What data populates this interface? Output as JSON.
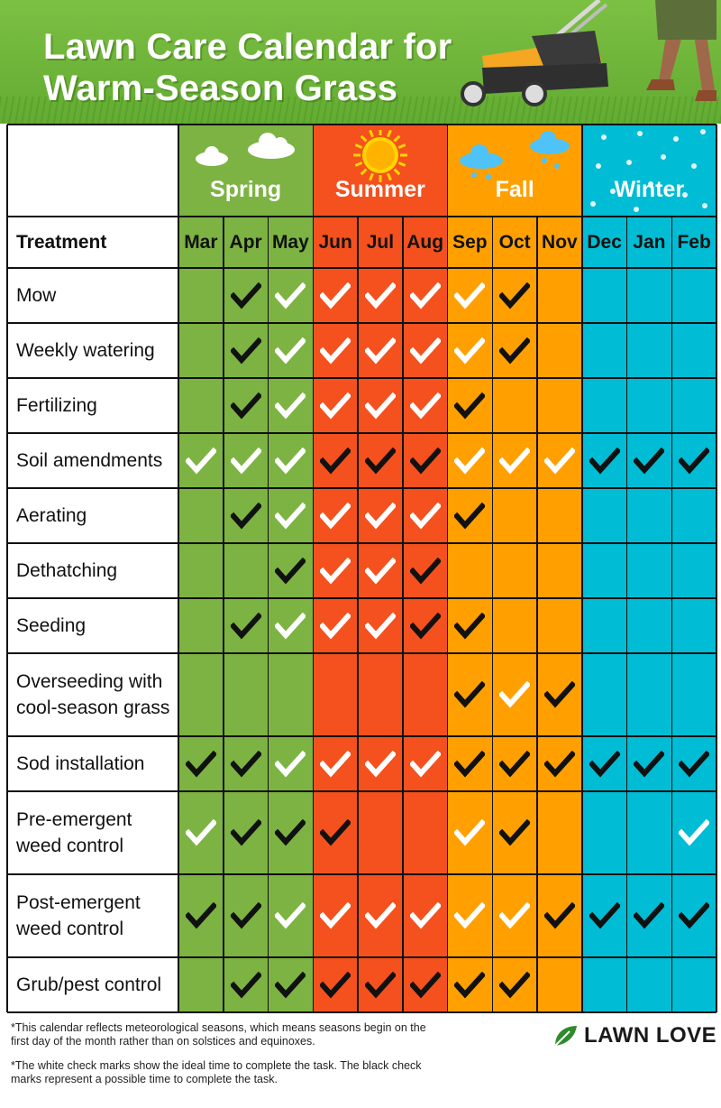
{
  "title": {
    "line1": "Lawn Care Calendar for",
    "line2": "Warm-Season Grass"
  },
  "colors": {
    "spring": "#7cb342",
    "summer": "#f4511e",
    "fall": "#ffa000",
    "winter": "#00bcd4",
    "check_white": "#ffffff",
    "check_black": "#111111"
  },
  "seasons": [
    {
      "label": "Spring",
      "icon": "cloud-icon"
    },
    {
      "label": "Summer",
      "icon": "sun-icon"
    },
    {
      "label": "Fall",
      "icon": "rain-cloud-icon"
    },
    {
      "label": "Winter",
      "icon": "snowflake-icon"
    }
  ],
  "table": {
    "treatment_header": "Treatment",
    "months": [
      "Mar",
      "Apr",
      "May",
      "Jun",
      "Jul",
      "Aug",
      "Sep",
      "Oct",
      "Nov",
      "Dec",
      "Jan",
      "Feb"
    ],
    "legend": {
      "W": "white check = ideal time",
      "B": "black check = possible time"
    },
    "rows": [
      {
        "name": "Mow",
        "marks": [
          "",
          "B",
          "W",
          "W",
          "W",
          "W",
          "W",
          "B",
          "",
          "",
          "",
          ""
        ]
      },
      {
        "name": "Weekly watering",
        "marks": [
          "",
          "B",
          "W",
          "W",
          "W",
          "W",
          "W",
          "B",
          "",
          "",
          "",
          ""
        ]
      },
      {
        "name": "Fertilizing",
        "marks": [
          "",
          "B",
          "W",
          "W",
          "W",
          "W",
          "B",
          "",
          "",
          "",
          "",
          ""
        ]
      },
      {
        "name": "Soil amendments",
        "marks": [
          "W",
          "W",
          "W",
          "B",
          "B",
          "B",
          "W",
          "W",
          "W",
          "B",
          "B",
          "B"
        ]
      },
      {
        "name": "Aerating",
        "marks": [
          "",
          "B",
          "W",
          "W",
          "W",
          "W",
          "B",
          "",
          "",
          "",
          "",
          ""
        ]
      },
      {
        "name": "Dethatching",
        "marks": [
          "",
          "",
          "B",
          "W",
          "W",
          "B",
          "",
          "",
          "",
          "",
          "",
          ""
        ]
      },
      {
        "name": "Seeding",
        "marks": [
          "",
          "B",
          "W",
          "W",
          "W",
          "B",
          "B",
          "",
          "",
          "",
          "",
          ""
        ]
      },
      {
        "name": "Overseeding with cool-season grass",
        "marks": [
          "",
          "",
          "",
          "",
          "",
          "",
          "B",
          "W",
          "B",
          "",
          "",
          ""
        ]
      },
      {
        "name": "Sod installation",
        "marks": [
          "B",
          "B",
          "W",
          "W",
          "W",
          "W",
          "B",
          "B",
          "B",
          "B",
          "B",
          "B"
        ]
      },
      {
        "name": "Pre-emergent weed control",
        "marks": [
          "W",
          "B",
          "B",
          "B",
          "",
          "",
          "W",
          "B",
          "",
          "",
          "",
          "W"
        ]
      },
      {
        "name": "Post-emergent weed control",
        "marks": [
          "B",
          "B",
          "W",
          "W",
          "W",
          "W",
          "W",
          "W",
          "B",
          "B",
          "B",
          "B"
        ]
      },
      {
        "name": "Grub/pest control",
        "marks": [
          "",
          "B",
          "B",
          "B",
          "B",
          "B",
          "B",
          "B",
          "",
          "",
          "",
          ""
        ]
      }
    ]
  },
  "footnotes": {
    "note1": "*This calendar reflects meteorological seasons, which means seasons begin on the first day of the month rather than on solstices and equinoxes.",
    "note2": "*The white check marks show the ideal time to complete the task. The black check marks represent a possible time to complete the task."
  },
  "logo": {
    "text": "LAWN LOVE",
    "icon": "leaf-logo-icon"
  }
}
